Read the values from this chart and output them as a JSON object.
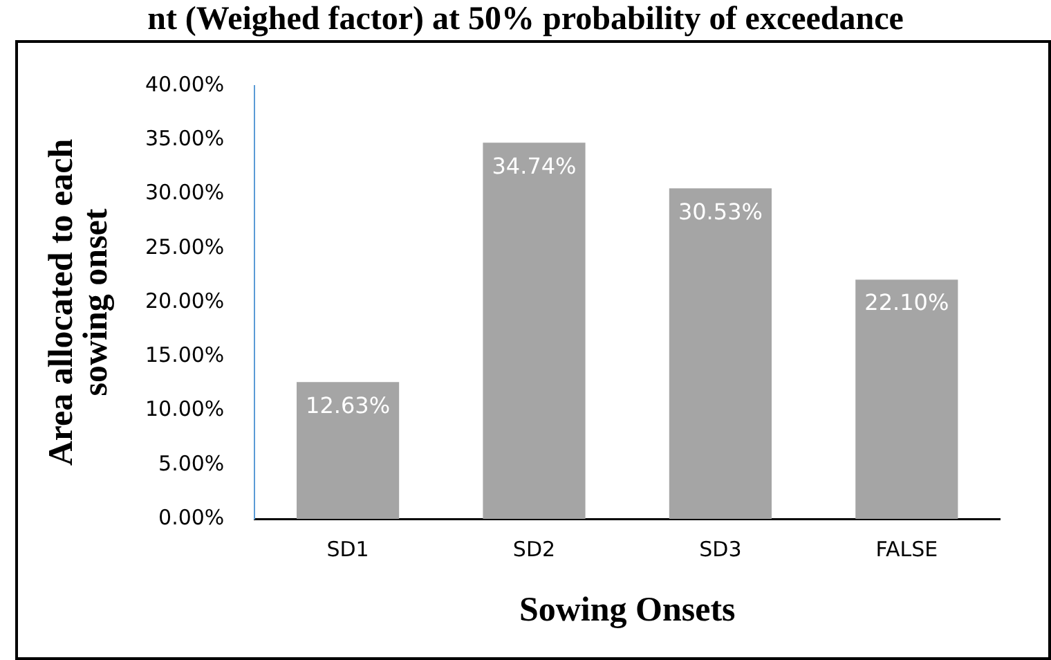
{
  "chart_data": {
    "type": "bar",
    "title": "nt (Weighed factor) at 50% probability of exceedance",
    "xlabel": "Sowing Onsets",
    "ylabel": "Area allocated to each sowing onset",
    "categories": [
      "SD1",
      "SD2",
      "SD3",
      "FALSE"
    ],
    "values": [
      12.63,
      34.74,
      30.53,
      22.1
    ],
    "value_labels": [
      "12.63%",
      "34.74%",
      "30.53%",
      "22.10%"
    ],
    "color": "#a5a5a5",
    "ylim": [
      0,
      40
    ],
    "yticks": [
      {
        "value": 0,
        "label": "0.00%"
      },
      {
        "value": 5,
        "label": "5.00%"
      },
      {
        "value": 10,
        "label": "10.00%"
      },
      {
        "value": 15,
        "label": "15.00%"
      },
      {
        "value": 20,
        "label": "20.00%"
      },
      {
        "value": 25,
        "label": "25.00%"
      },
      {
        "value": 30,
        "label": "30.00%"
      },
      {
        "value": 35,
        "label": "35.00%"
      },
      {
        "value": 40,
        "label": "40.00%"
      }
    ],
    "grid": false,
    "legend": false
  }
}
